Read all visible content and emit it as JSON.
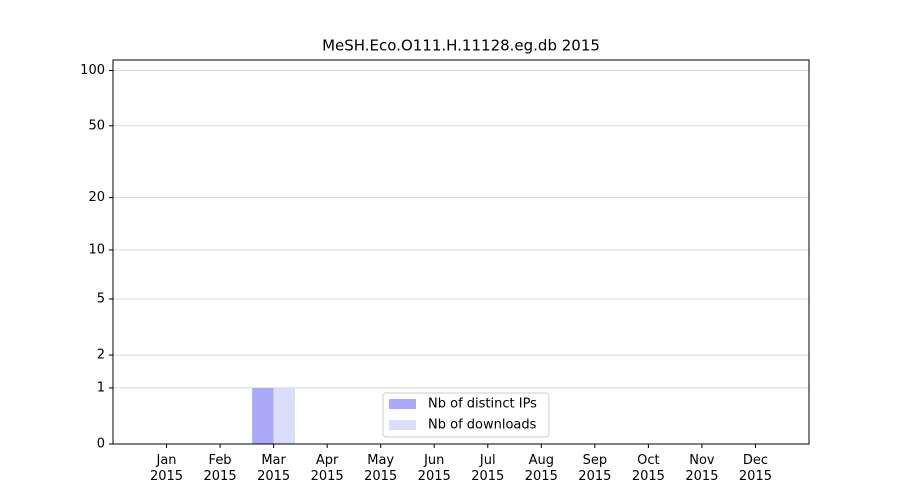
{
  "chart_data": {
    "type": "bar",
    "title": "MeSH.Eco.O111.H.11128.eg.db 2015",
    "categories": [
      "Jan\n2015",
      "Feb\n2015",
      "Mar\n2015",
      "Apr\n2015",
      "May\n2015",
      "Jun\n2015",
      "Jul\n2015",
      "Aug\n2015",
      "Sep\n2015",
      "Oct\n2015",
      "Nov\n2015",
      "Dec\n2015"
    ],
    "series": [
      {
        "name": "Nb of distinct IPs",
        "color": "#aaaaf8",
        "values": [
          0,
          0,
          1,
          0,
          0,
          0,
          0,
          0,
          0,
          0,
          0,
          0
        ]
      },
      {
        "name": "Nb of downloads",
        "color": "#dcdcfb",
        "values": [
          0,
          0,
          1,
          0,
          0,
          0,
          0,
          0,
          0,
          0,
          0,
          0
        ]
      }
    ],
    "yscale": "log1p",
    "ylim": [
      0,
      114
    ],
    "yticks": [
      0,
      1,
      2,
      5,
      10,
      20,
      50,
      100
    ],
    "grid": true,
    "legend": "lower center"
  }
}
